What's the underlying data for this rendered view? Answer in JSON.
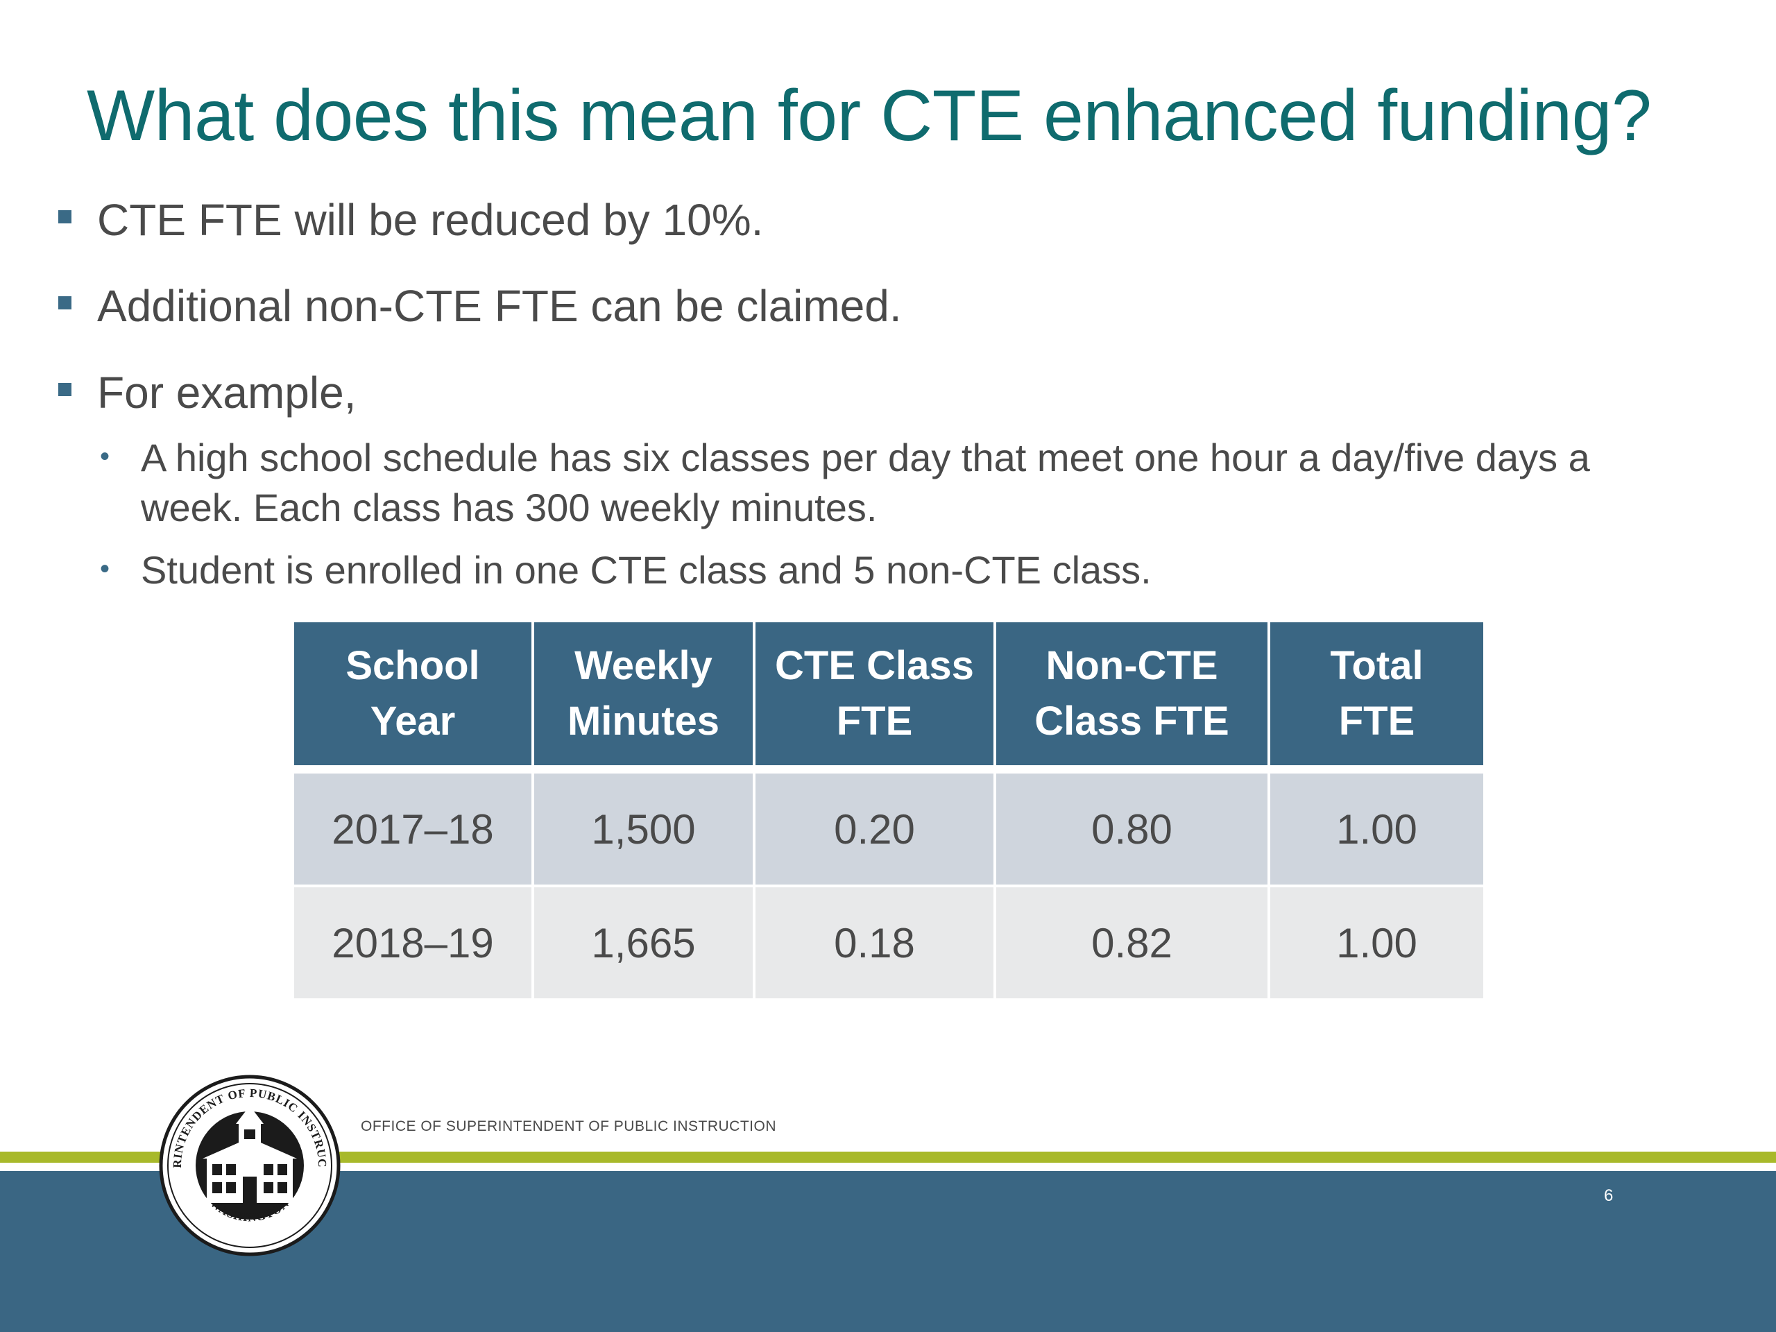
{
  "slide": {
    "title": "What does this mean for CTE enhanced funding?",
    "bullets": [
      "CTE FTE will be reduced by 10%.",
      "Additional non-CTE FTE can be claimed.",
      "For example,"
    ],
    "sub_bullets": [
      "A high school schedule has six classes per day that meet one hour a day/five days a week. Each class has 300 weekly minutes.",
      "Student is enrolled in one CTE class and 5 non-CTE class."
    ]
  },
  "table": {
    "headers": [
      [
        "School",
        "Year"
      ],
      [
        "Weekly",
        "Minutes"
      ],
      [
        "CTE Class",
        "FTE"
      ],
      [
        "Non-CTE",
        "Class FTE"
      ],
      [
        "Total",
        "FTE"
      ]
    ],
    "rows": [
      [
        "2017–18",
        "1,500",
        "0.20",
        "0.80",
        "1.00"
      ],
      [
        "2018–19",
        "1,665",
        "0.18",
        "0.82",
        "1.00"
      ]
    ]
  },
  "footer": {
    "org_name": "OFFICE OF SUPERINTENDENT OF PUBLIC INSTRUCTION",
    "page_number": "6",
    "seal_text_top": "SUPERINTENDENT OF PUBLIC INSTRUCTION",
    "seal_text_bottom": "WASHINGTON"
  },
  "colors": {
    "title": "#0f6b6e",
    "accent_blue": "#3a6683",
    "accent_green": "#a8b92a",
    "row_1": "#cfd5dd",
    "row_2": "#e8e9ea"
  }
}
